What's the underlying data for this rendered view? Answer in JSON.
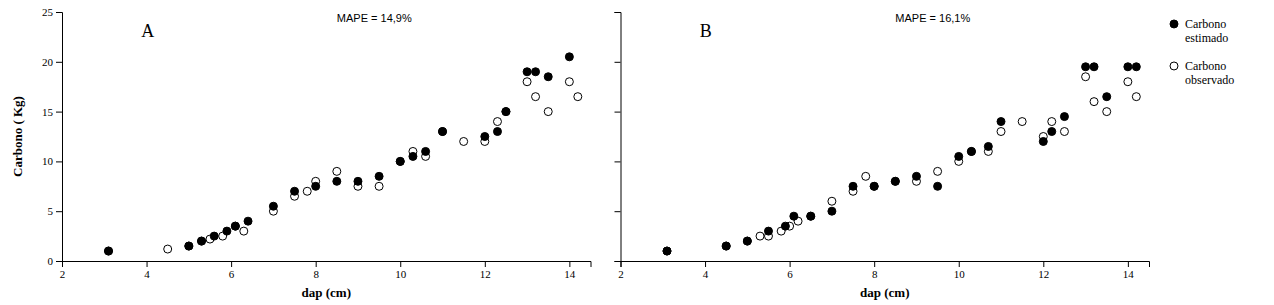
{
  "chart_data": [
    {
      "type": "scatter",
      "title": "A",
      "annotations": [
        "MAPE = 14,9%"
      ],
      "x_label": "dap (cm)",
      "y_label": "Carbono ( Kg)",
      "xlim": [
        2,
        14.5
      ],
      "ylim": [
        0,
        25
      ],
      "xticks": [
        2,
        4,
        6,
        8,
        10,
        12,
        14
      ],
      "yticks": [
        0,
        5,
        10,
        15,
        20,
        25
      ],
      "series": [
        {
          "color": "#000000",
          "marker": "circle",
          "x": [
            3.1,
            5.0,
            5.3,
            5.6,
            5.9,
            6.1,
            6.4,
            7.0,
            7.5,
            8.0,
            8.5,
            9.0,
            9.5,
            10.0,
            10.3,
            10.6,
            11.0,
            12.0,
            12.3,
            12.5,
            13.0,
            13.2,
            13.5,
            14.0
          ],
          "values": [
            1.0,
            1.5,
            2.0,
            2.5,
            3.0,
            3.5,
            4.0,
            5.5,
            7.0,
            7.5,
            8.0,
            8.0,
            8.5,
            10.0,
            10.5,
            11.0,
            13.0,
            12.5,
            13.0,
            15.0,
            19.0,
            19.0,
            18.5,
            20.5
          ]
        },
        {
          "color": "#000000",
          "marker": "circle-open",
          "x": [
            3.1,
            4.5,
            5.0,
            5.3,
            5.5,
            5.8,
            6.1,
            6.3,
            7.0,
            7.5,
            7.8,
            8.0,
            8.5,
            9.0,
            9.5,
            10.0,
            10.3,
            10.6,
            11.0,
            11.5,
            12.0,
            12.3,
            12.5,
            13.0,
            13.2,
            13.5,
            14.0,
            14.2
          ],
          "values": [
            1.0,
            1.2,
            1.5,
            2.0,
            2.2,
            2.5,
            3.5,
            3.0,
            5.0,
            6.5,
            7.0,
            8.0,
            9.0,
            7.5,
            7.5,
            10.0,
            11.0,
            10.5,
            13.0,
            12.0,
            12.0,
            14.0,
            15.0,
            18.0,
            16.5,
            15.0,
            18.0,
            16.5
          ]
        }
      ]
    },
    {
      "type": "scatter",
      "title": "B",
      "annotations": [
        "MAPE = 16,1%"
      ],
      "x_label": "dap (cm)",
      "xlim": [
        2,
        14.5
      ],
      "ylim": [
        0,
        25
      ],
      "xticks": [
        2,
        4,
        6,
        8,
        10,
        12,
        14
      ],
      "yticks": [
        0,
        5,
        10,
        15,
        20,
        25
      ],
      "tick_labels": "x",
      "legend": "right",
      "series": [
        {
          "name": "Carbono\nestimado",
          "color": "#000000",
          "marker": "circle",
          "x": [
            3.1,
            4.5,
            5.0,
            5.5,
            5.9,
            6.1,
            6.5,
            7.0,
            7.5,
            8.0,
            8.5,
            9.0,
            9.5,
            10.0,
            10.3,
            10.7,
            11.0,
            12.0,
            12.2,
            12.5,
            13.0,
            13.2,
            13.5,
            14.0,
            14.2
          ],
          "values": [
            1.0,
            1.5,
            2.0,
            3.0,
            3.5,
            4.5,
            4.5,
            5.0,
            7.5,
            7.5,
            8.0,
            8.5,
            7.5,
            10.5,
            11.0,
            11.5,
            14.0,
            12.0,
            13.0,
            14.5,
            19.5,
            19.5,
            16.5,
            19.5,
            19.5
          ]
        },
        {
          "name": "Carbono\nobservado",
          "color": "#000000",
          "marker": "circle-open",
          "x": [
            3.1,
            4.5,
            5.0,
            5.3,
            5.5,
            5.8,
            6.0,
            6.2,
            6.5,
            7.0,
            7.5,
            7.8,
            8.0,
            8.5,
            9.0,
            9.5,
            10.0,
            10.3,
            10.7,
            11.0,
            11.5,
            12.0,
            12.2,
            12.5,
            13.0,
            13.2,
            13.5,
            14.0,
            14.2
          ],
          "values": [
            1.0,
            1.5,
            2.0,
            2.5,
            2.5,
            3.0,
            3.5,
            4.0,
            4.5,
            6.0,
            7.0,
            8.5,
            7.5,
            8.0,
            8.0,
            9.0,
            10.0,
            11.0,
            11.0,
            13.0,
            14.0,
            12.5,
            14.0,
            13.0,
            18.5,
            16.0,
            15.0,
            18.0,
            16.5
          ]
        }
      ]
    }
  ]
}
